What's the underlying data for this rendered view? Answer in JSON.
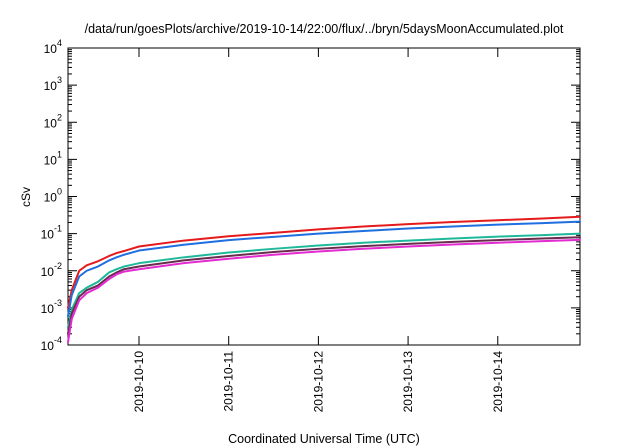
{
  "chart_data": {
    "type": "line",
    "title": "/data/run/goesPlots/archive/2019-10-14/22:00/flux/../bryn/5daysMoonAccumulated.plot",
    "xlabel": "Coordinated Universal Time (UTC)",
    "ylabel": "cSv",
    "yscale": "log",
    "ylim": [
      0.0001,
      10000
    ],
    "xlim": [
      "2019-10-09 05:00",
      "2019-10-14 22:00"
    ],
    "y_ticks": [
      {
        "base": "10",
        "exp": "-4",
        "value": 0.0001
      },
      {
        "base": "10",
        "exp": "-3",
        "value": 0.001
      },
      {
        "base": "10",
        "exp": "-2",
        "value": 0.01
      },
      {
        "base": "10",
        "exp": "-1",
        "value": 0.1
      },
      {
        "base": "10",
        "exp": "0",
        "value": 1
      },
      {
        "base": "10",
        "exp": "1",
        "value": 10
      },
      {
        "base": "10",
        "exp": "2",
        "value": 100
      },
      {
        "base": "10",
        "exp": "3",
        "value": 1000
      },
      {
        "base": "10",
        "exp": "4",
        "value": 10000
      }
    ],
    "x_ticks": [
      {
        "label": "2019-10-10",
        "value": "2019-10-10 00:00"
      },
      {
        "label": "2019-10-11",
        "value": "2019-10-11 00:00"
      },
      {
        "label": "2019-10-12",
        "value": "2019-10-12 00:00"
      },
      {
        "label": "2019-10-13",
        "value": "2019-10-13 00:00"
      },
      {
        "label": "2019-10-14",
        "value": "2019-10-14 00:00"
      }
    ],
    "grid": false,
    "legend": "none",
    "x": [
      "2019-10-09 05:00",
      "2019-10-09 06:00",
      "2019-10-09 08:00",
      "2019-10-09 10:00",
      "2019-10-09 13:00",
      "2019-10-09 16:00",
      "2019-10-09 18:00",
      "2019-10-09 20:00",
      "2019-10-10 00:00",
      "2019-10-10 12:00",
      "2019-10-11 00:00",
      "2019-10-11 12:00",
      "2019-10-12 00:00",
      "2019-10-12 12:00",
      "2019-10-13 00:00",
      "2019-10-13 12:00",
      "2019-10-14 00:00",
      "2019-10-14 12:00",
      "2019-10-14 22:00"
    ],
    "series": [
      {
        "color": "#e41a1c",
        "values": [
          0.001,
          0.003,
          0.01,
          0.014,
          0.018,
          0.025,
          0.03,
          0.034,
          0.045,
          0.065,
          0.085,
          0.105,
          0.13,
          0.155,
          0.18,
          0.205,
          0.23,
          0.255,
          0.285
        ]
      },
      {
        "color": "#1f6fe0",
        "values": [
          0.0006,
          0.0022,
          0.007,
          0.01,
          0.013,
          0.019,
          0.023,
          0.027,
          0.035,
          0.05,
          0.067,
          0.082,
          0.1,
          0.118,
          0.137,
          0.155,
          0.175,
          0.192,
          0.21
        ]
      },
      {
        "color": "#20b89a",
        "values": [
          0.0003,
          0.0009,
          0.0025,
          0.0035,
          0.005,
          0.009,
          0.011,
          0.013,
          0.016,
          0.023,
          0.031,
          0.039,
          0.048,
          0.057,
          0.065,
          0.074,
          0.083,
          0.091,
          0.1
        ]
      },
      {
        "color": "#6a2c4e",
        "values": [
          0.0002,
          0.0007,
          0.002,
          0.003,
          0.004,
          0.007,
          0.009,
          0.011,
          0.013,
          0.019,
          0.025,
          0.032,
          0.039,
          0.046,
          0.053,
          0.06,
          0.067,
          0.074,
          0.08
        ]
      },
      {
        "color": "#e22bd0",
        "values": [
          0.00012,
          0.0005,
          0.0016,
          0.0025,
          0.0035,
          0.006,
          0.008,
          0.0095,
          0.011,
          0.016,
          0.021,
          0.027,
          0.033,
          0.039,
          0.045,
          0.051,
          0.057,
          0.063,
          0.068
        ]
      }
    ]
  }
}
